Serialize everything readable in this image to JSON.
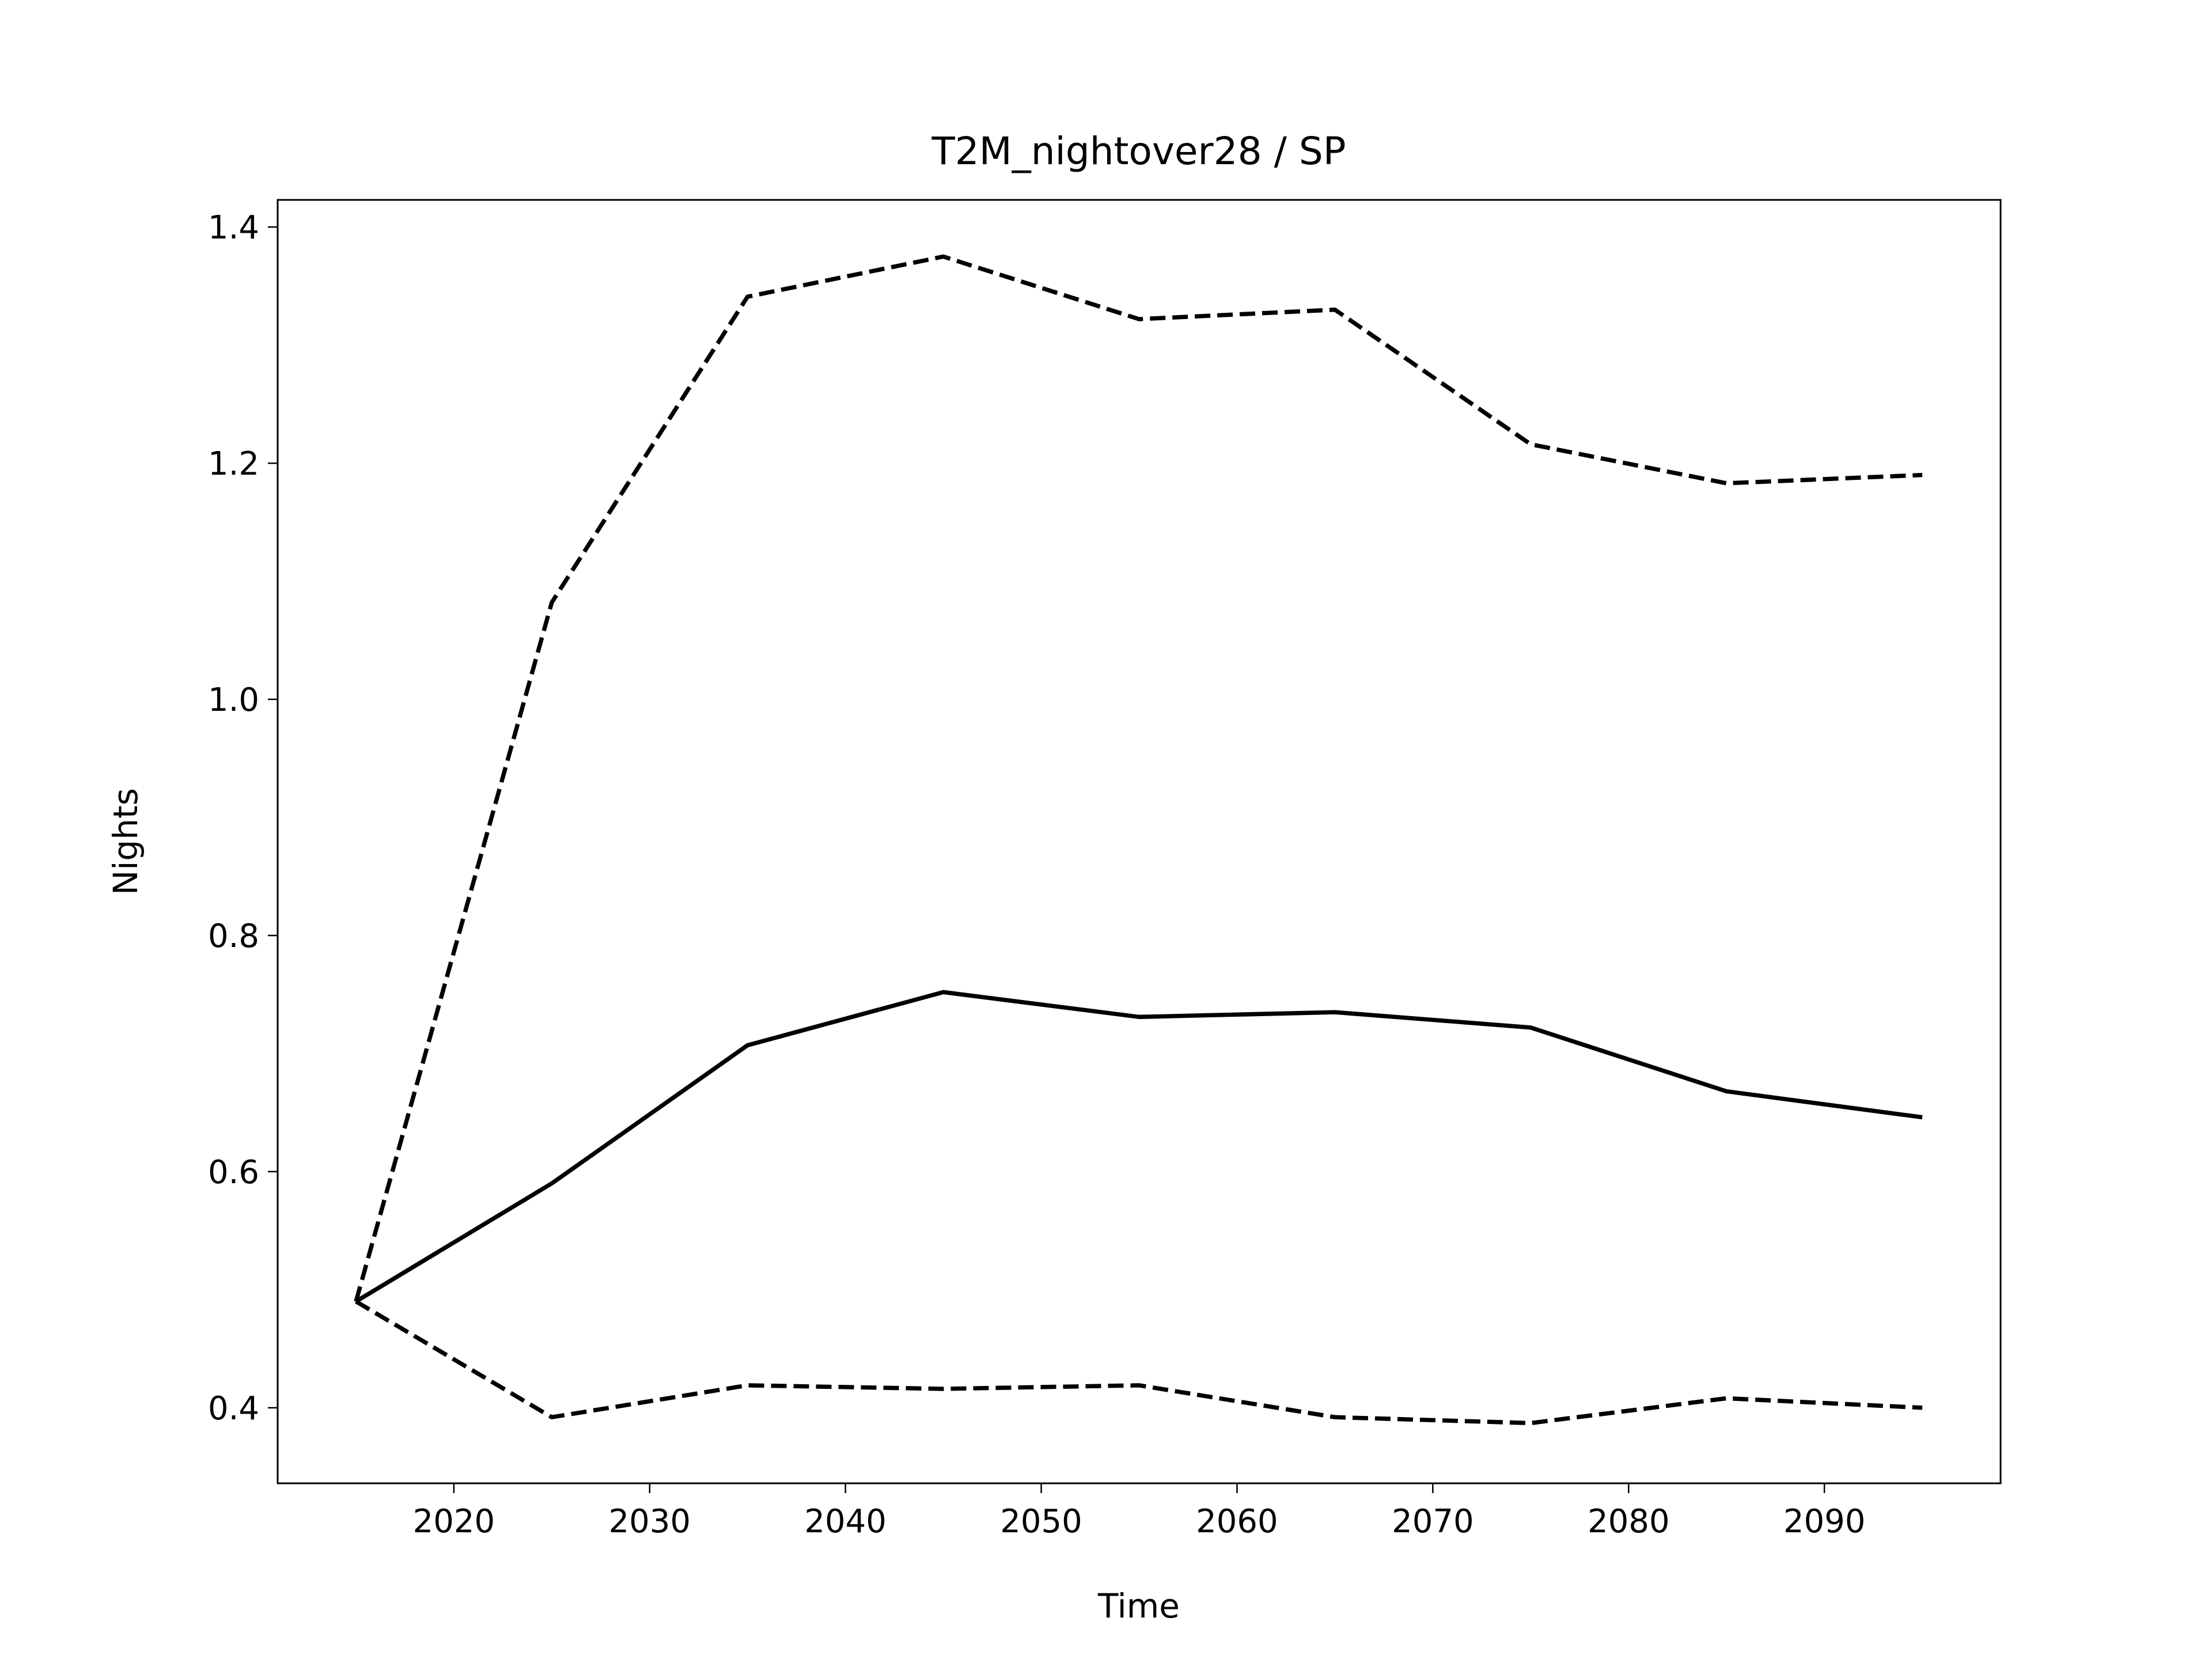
{
  "chart_data": {
    "type": "line",
    "title": "T2M_nightover28 / SP",
    "xlabel": "Time",
    "ylabel": "Nights",
    "x": [
      2015,
      2025,
      2035,
      2045,
      2055,
      2065,
      2075,
      2085,
      2095
    ],
    "series": [
      {
        "color": "#000000",
        "dashed": false,
        "values": [
          0.49,
          0.59,
          0.707,
          0.752,
          0.731,
          0.735,
          0.722,
          0.668,
          0.646
        ]
      },
      {
        "color": "#000000",
        "dashed": true,
        "values": [
          0.49,
          1.082,
          1.341,
          1.375,
          1.322,
          1.33,
          1.216,
          1.183,
          1.19
        ]
      },
      {
        "color": "#000000",
        "dashed": true,
        "values": [
          0.49,
          0.392,
          0.419,
          0.416,
          0.419,
          0.392,
          0.387,
          0.408,
          0.4
        ]
      }
    ],
    "xlim": [
      2011,
      2099
    ],
    "ylim": [
      0.336,
      1.423
    ],
    "xticks": [
      2020,
      2030,
      2040,
      2050,
      2060,
      2070,
      2080,
      2090
    ],
    "yticks": [
      0.4,
      0.6,
      0.8,
      {
        "value": 1,
        "label": "1.0"
      },
      1.2,
      1.4
    ],
    "grid": false
  }
}
